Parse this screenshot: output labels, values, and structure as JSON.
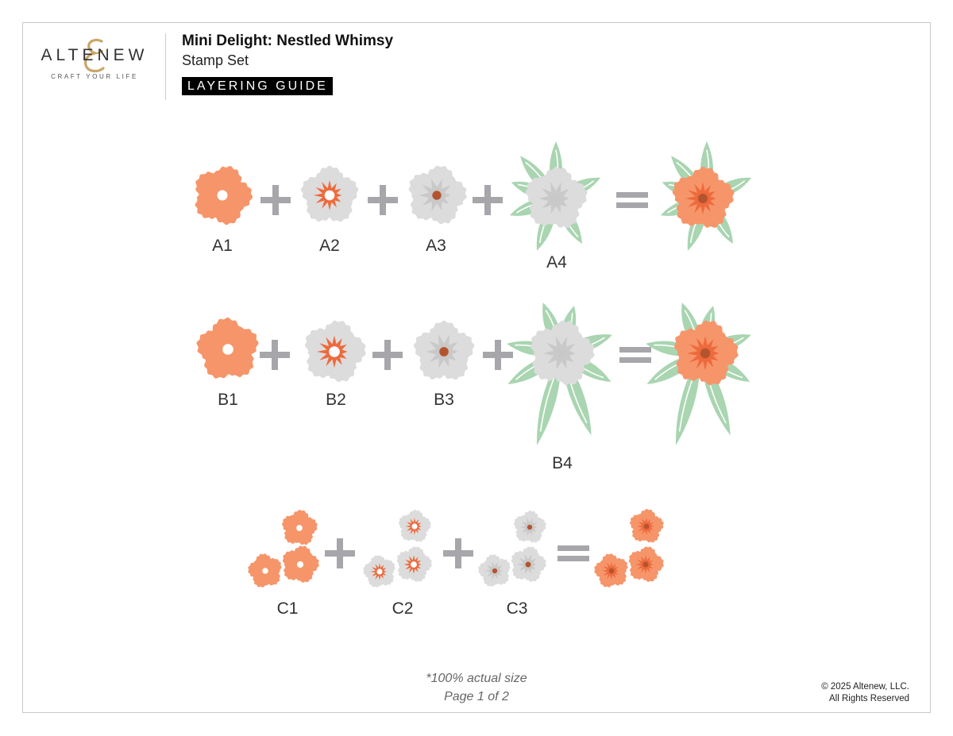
{
  "header": {
    "brand": "ALTENEW",
    "brand_ampersand": "&",
    "tagline": "CRAFT YOUR LIFE",
    "title": "Mini Delight: Nestled Whimsy",
    "subtitle": "Stamp Set",
    "badge": "LAYERING GUIDE"
  },
  "rows": {
    "a": {
      "labels": [
        "A1",
        "A2",
        "A3",
        "A4"
      ]
    },
    "b": {
      "labels": [
        "B1",
        "B2",
        "B3",
        "B4"
      ]
    },
    "c": {
      "labels": [
        "C1",
        "C2",
        "C3"
      ]
    }
  },
  "operators": {
    "plus": "+",
    "equals": "="
  },
  "colors": {
    "orange": "#f6956a",
    "orange_dark": "#ee6a3c",
    "brown": "#b4542f",
    "grey": "#dcdcdc",
    "grey_dark": "#c9c9c9",
    "leaf": "#a9d5b1",
    "operator": "#a7a7ab"
  },
  "footer": {
    "note": "*100% actual size",
    "page": "Page 1 of 2",
    "copyright": "© 2025 Altenew, LLC.",
    "rights": "All Rights Reserved"
  }
}
